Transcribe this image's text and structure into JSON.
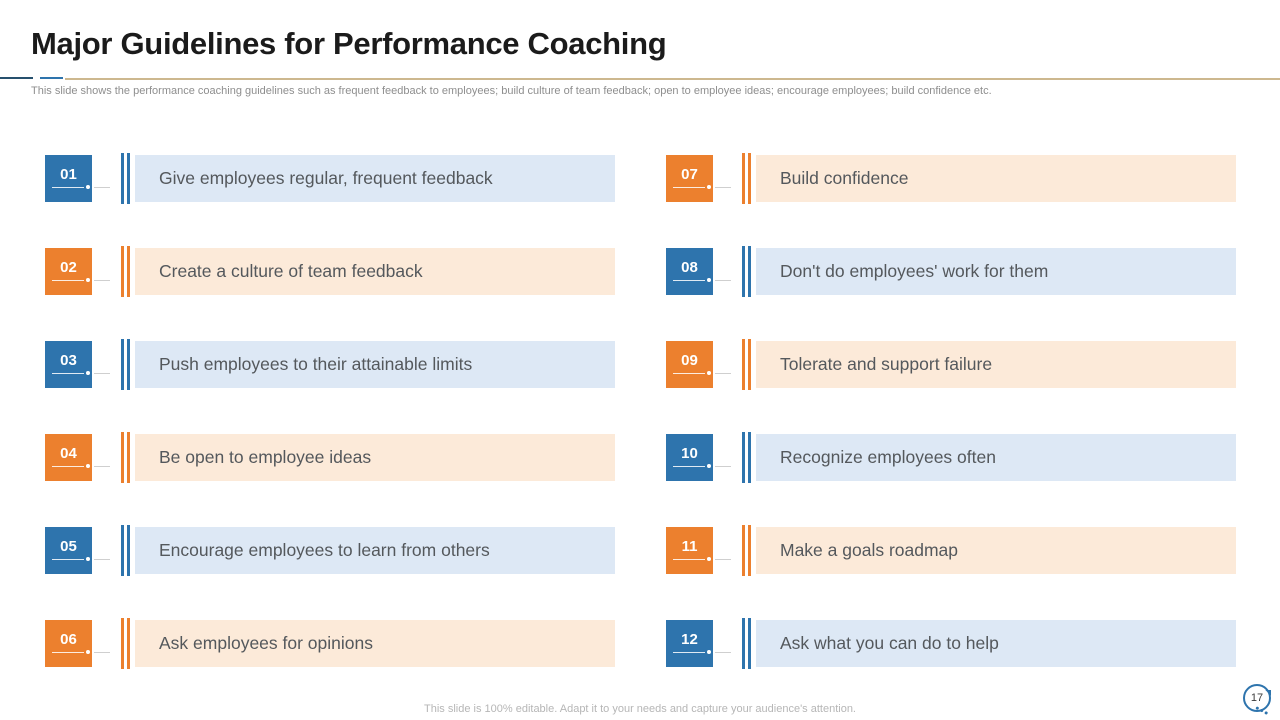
{
  "slide": {
    "title": "Major Guidelines for Performance Coaching",
    "subtitle": "This slide shows the performance coaching guidelines such as frequent feedback to employees; build culture of team feedback; open to employee ideas; encourage employees; build confidence etc.",
    "footer": "This slide is 100% editable. Adapt it to your needs and capture your audience's attention.",
    "page_number": "17"
  },
  "colors": {
    "blue": "#2e74ad",
    "blue_light": "#dde8f5",
    "orange": "#ec802e",
    "orange_light": "#fcead9",
    "tan_line": "#cdb88f"
  },
  "items": [
    {
      "number": "01",
      "label": "Give employees regular, frequent feedback",
      "variant": "blue"
    },
    {
      "number": "02",
      "label": "Create a culture of team feedback",
      "variant": "orange"
    },
    {
      "number": "03",
      "label": "Push employees to their attainable limits",
      "variant": "blue"
    },
    {
      "number": "04",
      "label": "Be open to employee ideas",
      "variant": "orange"
    },
    {
      "number": "05",
      "label": "Encourage employees to learn from others",
      "variant": "blue"
    },
    {
      "number": "06",
      "label": "Ask employees for opinions",
      "variant": "orange"
    },
    {
      "number": "07",
      "label": "Build confidence",
      "variant": "orange"
    },
    {
      "number": "08",
      "label": "Don't do employees' work for them",
      "variant": "blue"
    },
    {
      "number": "09",
      "label": "Tolerate and support failure",
      "variant": "orange"
    },
    {
      "number": "10",
      "label": "Recognize employees often",
      "variant": "blue"
    },
    {
      "number": "11",
      "label": "Make a goals roadmap",
      "variant": "orange"
    },
    {
      "number": "12",
      "label": "Ask what you can do to help",
      "variant": "blue"
    }
  ]
}
